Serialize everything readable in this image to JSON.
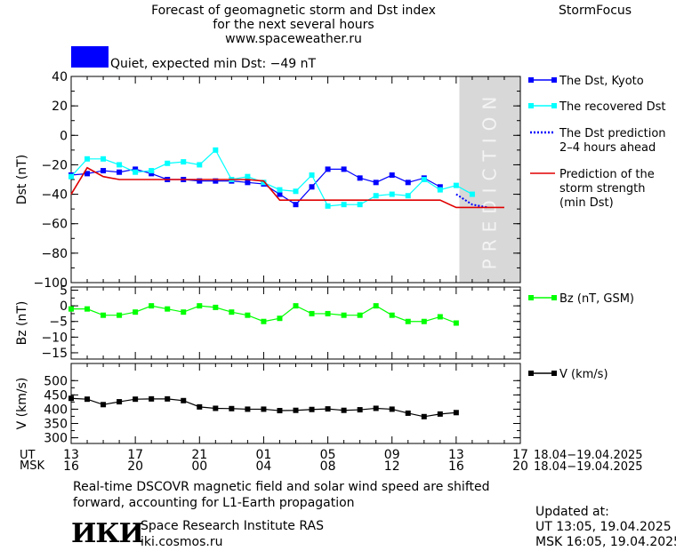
{
  "header": {
    "title_line1": "Forecast of geomagnetic storm and Dst index",
    "title_line2": "for the next several hours",
    "title_line3": "www.spaceweather.ru",
    "brand": "StormFocus"
  },
  "status": {
    "swatch_color": "#0000ff",
    "text": "Quiet, expected min Dst: −49 nT"
  },
  "footer": {
    "note_line1": "Real-time DSCOVR magnetic field and solar wind speed are shifted",
    "note_line2": "forward, accounting for L1-Earth propagation",
    "institute": "Space Research Institute RAS",
    "site": "iki.cosmos.ru",
    "logo_text": "ИКИ",
    "updated_label": "Updated at:",
    "updated_ut": "UT   13:05, 19.04.2025",
    "updated_msk": "MSK 16:05, 19.04.2025"
  },
  "chart_data": [
    {
      "type": "line",
      "ylabel": "Dst (nT)",
      "ylim": [
        -100,
        40
      ],
      "yticks": [
        "40",
        "20",
        "0",
        "−20",
        "−40",
        "−60",
        "−80",
        "−100"
      ],
      "prediction_label": "PREDICTION",
      "prediction_color": "#d8d8d8",
      "x_hours": [
        0,
        1,
        2,
        3,
        4,
        5,
        6,
        7,
        8,
        9,
        10,
        11,
        12,
        13,
        14,
        15,
        16,
        17,
        18,
        19,
        20,
        21,
        22,
        23,
        24
      ],
      "series": [
        {
          "name": "The Dst, Kyoto",
          "color": "#0000ff",
          "marker": "square",
          "x": [
            0,
            1,
            2,
            3,
            4,
            5,
            6,
            7,
            8,
            9,
            10,
            11,
            12,
            13,
            14,
            15,
            16,
            17,
            18,
            19,
            20,
            21,
            22,
            23
          ],
          "values": [
            -27,
            -26,
            -24,
            -25,
            -23,
            -26,
            -30,
            -30,
            -31,
            -31,
            -31,
            -32,
            -33,
            -40,
            -47,
            -35,
            -23,
            -23,
            -29,
            -32,
            -27,
            -32,
            -29,
            -35
          ]
        },
        {
          "name": "The recovered Dst",
          "color": "#00ffff",
          "marker": "square",
          "x": [
            0,
            1,
            2,
            3,
            4,
            5,
            6,
            7,
            8,
            9,
            10,
            11,
            12,
            13,
            14,
            15,
            16,
            17,
            18,
            19,
            20,
            21,
            22,
            23,
            24,
            25
          ],
          "values": [
            -28,
            -16,
            -16,
            -20,
            -25,
            -24,
            -19,
            -18,
            -20,
            -10,
            -30,
            -28,
            -32,
            -37,
            -38,
            -27,
            -48,
            -47,
            -47,
            -41,
            -40,
            -41,
            -30,
            -37,
            -34,
            -40
          ]
        },
        {
          "name": "The Dst prediction\n2–4 hours ahead",
          "color": "#0000ff",
          "style": "dotted",
          "x": [
            24,
            25,
            26
          ],
          "values": [
            -40,
            -47,
            -49
          ]
        },
        {
          "name": "Prediction of the\nstorm strength\n(min Dst)",
          "color": "#e00000",
          "style": "step",
          "x": [
            0,
            1,
            2,
            3,
            4,
            5,
            6,
            7,
            8,
            9,
            10,
            11,
            12,
            13,
            14,
            15,
            16,
            17,
            18,
            19,
            20,
            21,
            22,
            23,
            24,
            25,
            26,
            27
          ],
          "values": [
            -40,
            -22,
            -28,
            -30,
            -30,
            -30,
            -30,
            -30,
            -30,
            -30,
            -30,
            -30,
            -31,
            -44,
            -44,
            -44,
            -44,
            -44,
            -44,
            -44,
            -44,
            -44,
            -44,
            -44,
            -49,
            -49,
            -49,
            -49
          ]
        }
      ]
    },
    {
      "type": "line",
      "ylabel": "Bz (nT)",
      "ylim": [
        -17,
        6
      ],
      "yticks": [
        "5",
        "0",
        "−5",
        "−10",
        "−15"
      ],
      "series": [
        {
          "name": "Bz (nT, GSM)",
          "color": "#00ff00",
          "marker": "square",
          "x": [
            0,
            1,
            2,
            3,
            4,
            5,
            6,
            7,
            8,
            9,
            10,
            11,
            12,
            13,
            14,
            15,
            16,
            17,
            18,
            19,
            20,
            21,
            22,
            23,
            24,
            25
          ],
          "values": [
            -1,
            -1,
            -3,
            -3,
            -2,
            0,
            -1,
            -2,
            0,
            -0.5,
            -2,
            -3,
            -5,
            -4,
            0,
            -2.5,
            -2.5,
            -3,
            -3,
            0,
            -3,
            -5,
            -5,
            -3.5,
            -5.5,
            null
          ]
        }
      ]
    },
    {
      "type": "line",
      "ylabel": "V (km/s)",
      "ylim": [
        280,
        560
      ],
      "yticks": [
        "500",
        "450",
        "400",
        "350",
        "300"
      ],
      "series": [
        {
          "name": "V (km/s)",
          "color": "#000000",
          "marker": "square",
          "x": [
            0,
            1,
            2,
            3,
            4,
            5,
            6,
            7,
            8,
            9,
            10,
            11,
            12,
            13,
            14,
            15,
            16,
            17,
            18,
            19,
            20,
            21,
            22,
            23,
            24
          ],
          "values": [
            438,
            435,
            416,
            426,
            435,
            436,
            436,
            430,
            408,
            403,
            402,
            400,
            400,
            395,
            396,
            399,
            401,
            396,
            398,
            403,
            400,
            386,
            374,
            383,
            388
          ]
        }
      ]
    }
  ],
  "time_axis": {
    "ut_label": "UT",
    "msk_label": "MSK",
    "ut_ticks": [
      "13",
      "17",
      "21",
      "01",
      "05",
      "09",
      "13",
      "17"
    ],
    "msk_ticks": [
      "16",
      "20",
      "00",
      "04",
      "08",
      "12",
      "16",
      "20"
    ],
    "ut_range": "18.04−19.04.2025",
    "msk_range": "18.04−19.04.2025"
  }
}
